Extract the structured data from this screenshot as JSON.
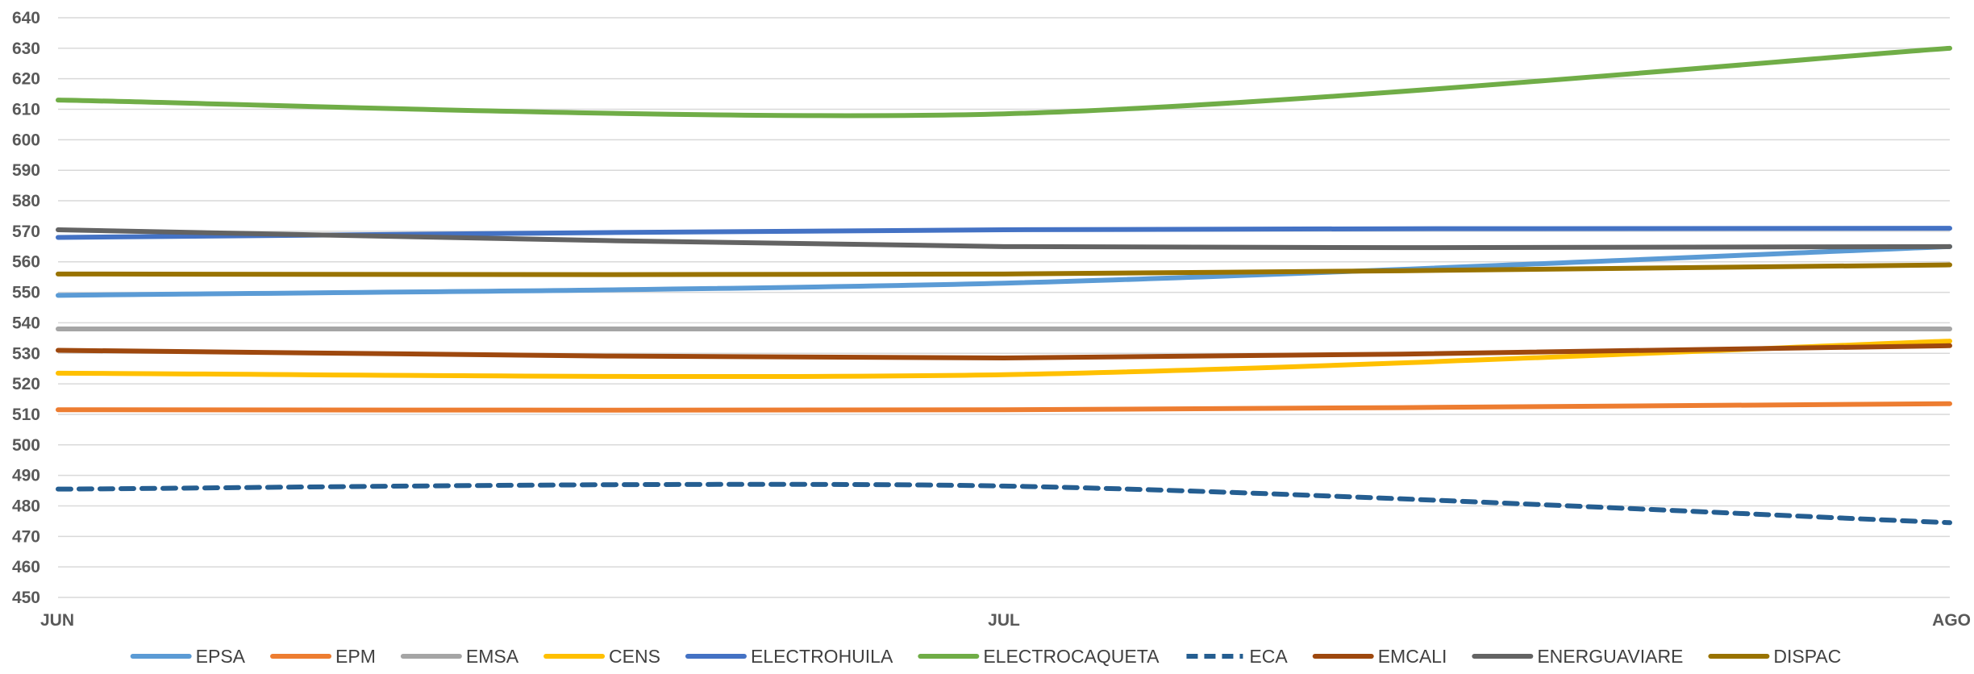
{
  "chart_data": {
    "type": "line",
    "title": "",
    "xlabel": "",
    "ylabel": "",
    "categories": [
      "JUN",
      "JUL",
      "AGO"
    ],
    "ylim": [
      450,
      640
    ],
    "ytick_step": 10,
    "grid": true,
    "legend_position": "bottom",
    "series": [
      {
        "name": "EPSA",
        "values": [
          549,
          553,
          565
        ],
        "color": "#5b9bd5",
        "dashed": false
      },
      {
        "name": "EPM",
        "values": [
          511.5,
          511.5,
          513.5
        ],
        "color": "#ed7d31",
        "dashed": false
      },
      {
        "name": "EMSA",
        "values": [
          538,
          538,
          538
        ],
        "color": "#a5a5a5",
        "dashed": false
      },
      {
        "name": "CENS",
        "values": [
          523.5,
          523,
          534
        ],
        "color": "#ffc000",
        "dashed": false
      },
      {
        "name": "ELECTROHUILA",
        "values": [
          568,
          570.5,
          571
        ],
        "color": "#4472c4",
        "dashed": false
      },
      {
        "name": "ELECTROCAQUETA",
        "values": [
          613,
          608.5,
          630
        ],
        "color": "#70ad47",
        "dashed": false
      },
      {
        "name": "ECA",
        "values": [
          485.5,
          486.5,
          474.5
        ],
        "color": "#255e91",
        "dashed": true
      },
      {
        "name": "EMCALI",
        "values": [
          531,
          528.5,
          532.5
        ],
        "color": "#9e480e",
        "dashed": false
      },
      {
        "name": "ENERGUAVIARE",
        "values": [
          570.5,
          565,
          565
        ],
        "color": "#636363",
        "dashed": false
      },
      {
        "name": "DISPAC",
        "values": [
          556,
          556,
          559
        ],
        "color": "#997300",
        "dashed": false
      }
    ]
  }
}
